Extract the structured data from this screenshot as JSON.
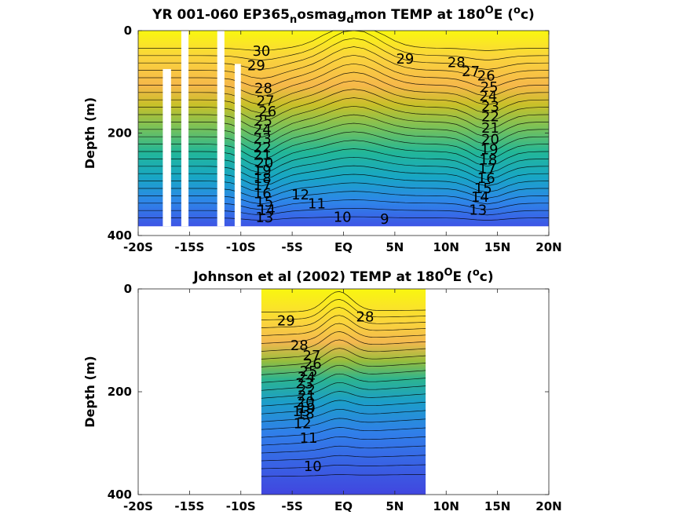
{
  "chart_data": [
    {
      "type": "heatmap",
      "title_main": "YR 001-060 EP365",
      "title_sub1": "n",
      "title_mid": "osmag",
      "title_sub2": "d",
      "title_tail": "mon TEMP at 180",
      "title_sup": "O",
      "title_end1": "E (",
      "title_sup2": "o",
      "title_end2": "c)",
      "ylabel": "Depth (m)",
      "xlim": [
        -20,
        20
      ],
      "ylim": [
        0,
        400
      ],
      "x_ticks": [
        -20,
        -15,
        -10,
        -5,
        0,
        5,
        10,
        15,
        20
      ],
      "x_tick_labels": [
        "-20S",
        "-15S",
        "-10S",
        "-5S",
        "EQ",
        "5N",
        "10N",
        "15N",
        "20N"
      ],
      "y_ticks": [
        0,
        200,
        400
      ],
      "y_tick_labels": [
        "0",
        "200",
        "400"
      ],
      "data_extent_x": [
        -20,
        20
      ],
      "data_extent_y": [
        0,
        382
      ],
      "missing_columns": [
        [
          -17.6,
          -16.8
        ],
        [
          -15.8,
          -15.1
        ],
        [
          -12.3,
          -11.6
        ],
        [
          -10.6,
          -10.0
        ]
      ],
      "contour_labels": [
        {
          "text": "30",
          "x": -8.0,
          "y": 40
        },
        {
          "text": "29",
          "x": -8.5,
          "y": 68
        },
        {
          "text": "28",
          "x": -7.8,
          "y": 113
        },
        {
          "text": "27",
          "x": -7.6,
          "y": 137
        },
        {
          "text": "26",
          "x": -7.4,
          "y": 158
        },
        {
          "text": "25",
          "x": -7.8,
          "y": 176
        },
        {
          "text": "24",
          "x": -7.9,
          "y": 193
        },
        {
          "text": "23",
          "x": -7.9,
          "y": 211
        },
        {
          "text": "22",
          "x": -7.9,
          "y": 228
        },
        {
          "text": "21",
          "x": -7.9,
          "y": 243
        },
        {
          "text": "20",
          "x": -7.7,
          "y": 258
        },
        {
          "text": "19",
          "x": -7.9,
          "y": 273
        },
        {
          "text": "18",
          "x": -7.9,
          "y": 288
        },
        {
          "text": "17",
          "x": -7.9,
          "y": 302
        },
        {
          "text": "16",
          "x": -7.9,
          "y": 318
        },
        {
          "text": "15",
          "x": -7.7,
          "y": 334
        },
        {
          "text": "14",
          "x": -7.5,
          "y": 350
        },
        {
          "text": "13",
          "x": -7.7,
          "y": 365
        },
        {
          "text": "12",
          "x": -4.2,
          "y": 320
        },
        {
          "text": "11",
          "x": -2.6,
          "y": 338
        },
        {
          "text": "10",
          "x": -0.1,
          "y": 364
        },
        {
          "text": "9",
          "x": 4.0,
          "y": 368
        },
        {
          "text": "29",
          "x": 6.0,
          "y": 55
        },
        {
          "text": "28",
          "x": 11.0,
          "y": 62
        },
        {
          "text": "27",
          "x": 12.4,
          "y": 80
        },
        {
          "text": "26",
          "x": 13.9,
          "y": 88
        },
        {
          "text": "25",
          "x": 14.2,
          "y": 110
        },
        {
          "text": "24",
          "x": 14.1,
          "y": 128
        },
        {
          "text": "23",
          "x": 14.3,
          "y": 148
        },
        {
          "text": "22",
          "x": 14.3,
          "y": 168
        },
        {
          "text": "21",
          "x": 14.3,
          "y": 190
        },
        {
          "text": "20",
          "x": 14.3,
          "y": 212
        },
        {
          "text": "19",
          "x": 14.2,
          "y": 232
        },
        {
          "text": "18",
          "x": 14.1,
          "y": 252
        },
        {
          "text": "17",
          "x": 14.0,
          "y": 270
        },
        {
          "text": "16",
          "x": 13.9,
          "y": 288
        },
        {
          "text": "15",
          "x": 13.6,
          "y": 308
        },
        {
          "text": "14",
          "x": 13.3,
          "y": 325
        },
        {
          "text": "13",
          "x": 13.1,
          "y": 350
        }
      ]
    },
    {
      "type": "heatmap",
      "title_main": "Johnson et al (2002) TEMP at 180",
      "title_sup": "O",
      "title_end1": "E (",
      "title_sup2": "o",
      "title_end2": "c)",
      "ylabel": "Depth (m)",
      "xlim": [
        -20,
        20
      ],
      "ylim": [
        0,
        400
      ],
      "x_ticks": [
        -20,
        -15,
        -10,
        -5,
        0,
        5,
        10,
        15,
        20
      ],
      "x_tick_labels": [
        "-20S",
        "-15S",
        "-10S",
        "-5S",
        "EQ",
        "5N",
        "10N",
        "15N",
        "20N"
      ],
      "y_ticks": [
        0,
        200,
        400
      ],
      "y_tick_labels": [
        "0",
        "200",
        "400"
      ],
      "data_extent_x": [
        -8,
        8
      ],
      "data_extent_y": [
        0,
        400
      ],
      "contour_labels": [
        {
          "text": "29",
          "x": -5.6,
          "y": 62
        },
        {
          "text": "28",
          "x": 2.1,
          "y": 54
        },
        {
          "text": "28",
          "x": -4.3,
          "y": 110
        },
        {
          "text": "27",
          "x": -3.1,
          "y": 130
        },
        {
          "text": "26",
          "x": -3.0,
          "y": 146
        },
        {
          "text": "25",
          "x": -3.4,
          "y": 160
        },
        {
          "text": "24",
          "x": -3.6,
          "y": 172
        },
        {
          "text": "23",
          "x": -3.8,
          "y": 184
        },
        {
          "text": "22",
          "x": -3.6,
          "y": 196
        },
        {
          "text": "21",
          "x": -3.6,
          "y": 208
        },
        {
          "text": "20",
          "x": -3.7,
          "y": 220
        },
        {
          "text": "19",
          "x": -3.6,
          "y": 232
        },
        {
          "text": "18",
          "x": -3.7,
          "y": 243
        },
        {
          "text": "13",
          "x": -4.1,
          "y": 238
        },
        {
          "text": "12",
          "x": -4.0,
          "y": 262
        },
        {
          "text": "11",
          "x": -3.4,
          "y": 290
        },
        {
          "text": "10",
          "x": -3.0,
          "y": 345
        }
      ]
    }
  ]
}
